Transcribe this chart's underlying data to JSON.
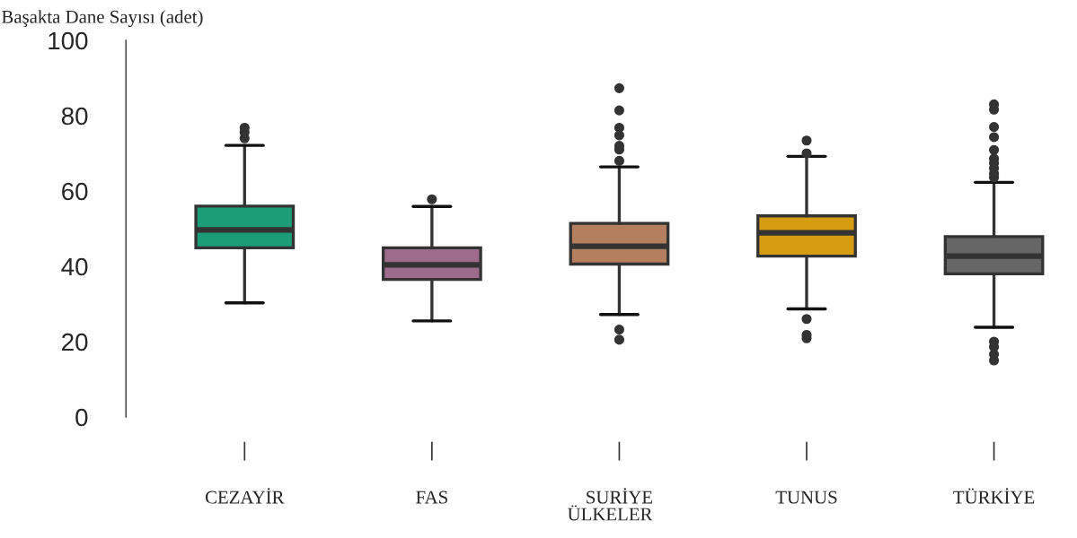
{
  "chart_data": {
    "type": "box",
    "ylabel": "Başakta Dane Sayısı (adet)",
    "xlabel": "ÜLKELER",
    "categories": [
      "CEZAYİR",
      "FAS",
      "SURİYE",
      "TUNUS",
      "TÜRKİYE"
    ],
    "colors": [
      "#1b9e77",
      "#9e6b8c",
      "#b47f5e",
      "#d69d12",
      "#666666"
    ],
    "boxes": [
      {
        "low": 30.3,
        "q1": 44.9,
        "median": 49.7,
        "q3": 56.0,
        "high": 72.1,
        "outliers": [
          74.0,
          75.6,
          76.8
        ]
      },
      {
        "low": 25.5,
        "q1": 36.5,
        "median": 40.4,
        "q3": 44.9,
        "high": 55.9,
        "outliers": [
          57.8
        ]
      },
      {
        "low": 27.2,
        "q1": 40.6,
        "median": 45.3,
        "q3": 51.4,
        "high": 66.4,
        "outliers": [
          20.5,
          23.2,
          68.0,
          71.0,
          72.0,
          74.8,
          76.8,
          81.4,
          87.3
        ]
      },
      {
        "low": 28.7,
        "q1": 42.7,
        "median": 48.9,
        "q3": 53.4,
        "high": 69.2,
        "outliers": [
          20.9,
          21.8,
          26.0,
          70.0,
          73.4
        ]
      },
      {
        "low": 23.8,
        "q1": 38.0,
        "median": 42.7,
        "q3": 47.9,
        "high": 62.3,
        "outliers": [
          15.0,
          16.6,
          18.6,
          20.0,
          63.6,
          64.6,
          66.0,
          67.4,
          68.6,
          70.9,
          74.3,
          77.0,
          81.6,
          83.0
        ]
      }
    ],
    "ylim": [
      0,
      100
    ],
    "yticks": [
      0,
      20,
      40,
      60,
      80,
      100
    ],
    "grid": false
  }
}
